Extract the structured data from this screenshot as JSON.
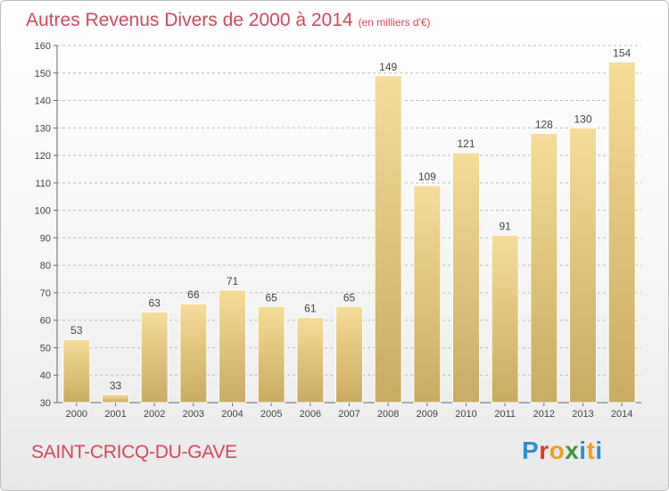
{
  "title": "Autres Revenus Divers de 2000 à 2014",
  "subtitle": "(en milliers d'€)",
  "place_name": "SAINT-CRICQ-DU-GAVE",
  "brand": {
    "letters": [
      "P",
      "r",
      "o",
      "x",
      "i",
      "t",
      "i"
    ],
    "colors": [
      "#2f8fd0",
      "#e0392c",
      "#f0a020",
      "#3a9a3a",
      "#2f8fd0",
      "#f0a020",
      "#2f8fd0"
    ]
  },
  "chart_data": {
    "type": "bar",
    "categories": [
      "2000",
      "2001",
      "2002",
      "2003",
      "2004",
      "2005",
      "2006",
      "2007",
      "2008",
      "2009",
      "2010",
      "2011",
      "2012",
      "2013",
      "2014"
    ],
    "values": [
      53,
      33,
      63,
      66,
      71,
      65,
      61,
      65,
      149,
      109,
      121,
      91,
      128,
      130,
      154
    ],
    "title": "Autres Revenus Divers de 2000 à 2014",
    "xlabel": "",
    "ylabel": "",
    "ylim": [
      30,
      160
    ],
    "yticks": [
      30,
      40,
      50,
      60,
      70,
      80,
      90,
      100,
      110,
      120,
      130,
      140,
      150,
      160
    ],
    "grid": true,
    "bar_color": "#e8c97a"
  }
}
